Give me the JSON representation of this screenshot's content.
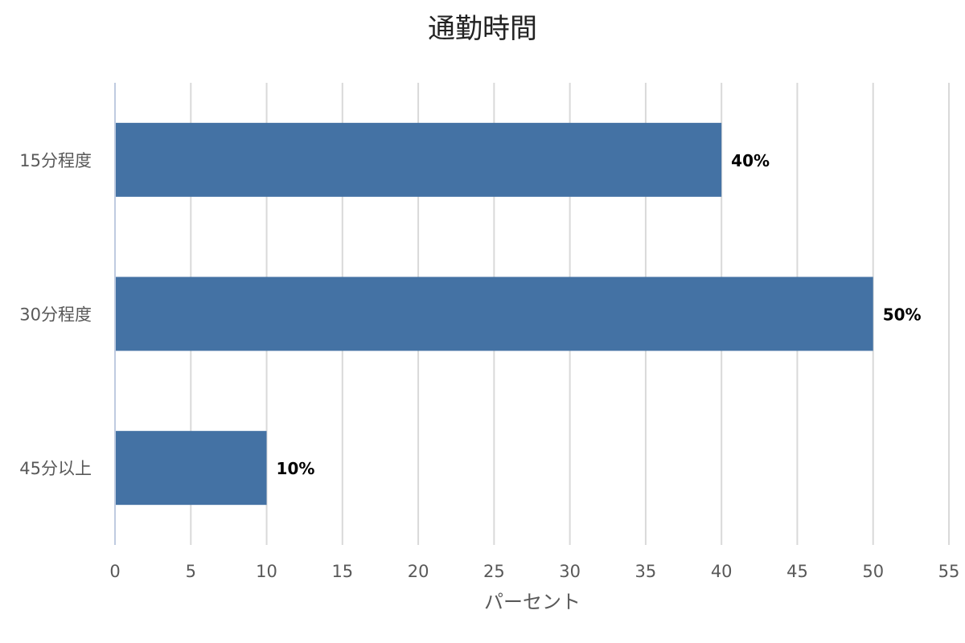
{
  "chart_data": {
    "type": "bar",
    "orientation": "horizontal",
    "title": "通勤時間",
    "xlabel": "パーセント",
    "ylabel": "",
    "categories": [
      "15分程度",
      "30分程度",
      "45分以上"
    ],
    "values": [
      40,
      50,
      10
    ],
    "data_labels": [
      "40%",
      "50%",
      "10%"
    ],
    "xlim": [
      0,
      55
    ],
    "x_ticks": [
      0,
      5,
      10,
      15,
      20,
      25,
      30,
      35,
      40,
      45,
      50,
      55
    ],
    "grid": true,
    "legend": "none",
    "colors": {
      "bar": "#4472A4",
      "grid": "#D9D9D9",
      "axis": "#BFCBE0"
    }
  }
}
